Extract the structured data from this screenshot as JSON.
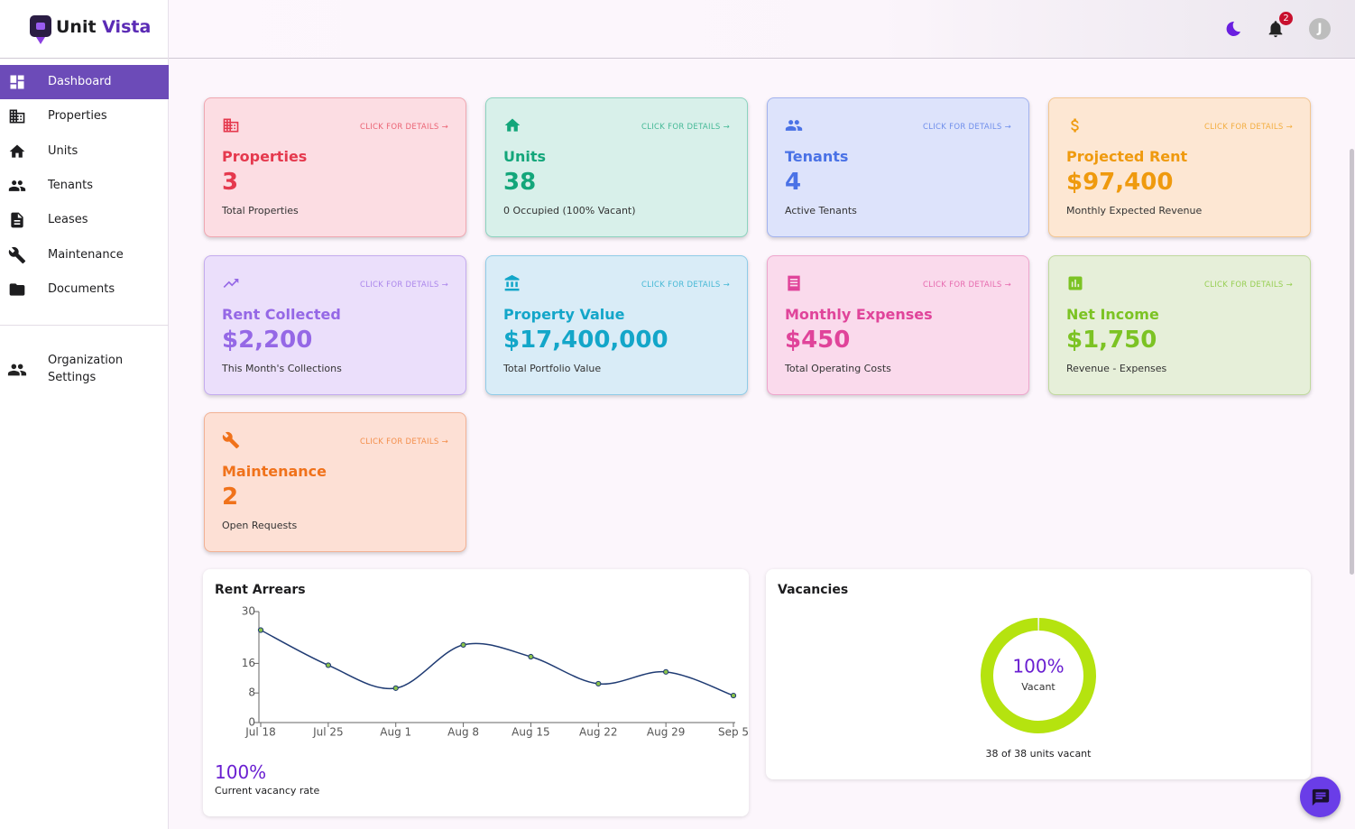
{
  "brand": {
    "first": "Unit",
    "second": "Vista"
  },
  "header": {
    "notification_count": "2",
    "avatar_initial": "J"
  },
  "nav": {
    "items": [
      "Dashboard",
      "Properties",
      "Units",
      "Tenants",
      "Leases",
      "Maintenance",
      "Documents"
    ],
    "settings": "Organization Settings"
  },
  "cards": [
    {
      "title": "Properties",
      "value": "3",
      "subtitle": "Total Properties",
      "link": "CLICK FOR DETAILS →"
    },
    {
      "title": "Units",
      "value": "38",
      "subtitle": "0 Occupied (100% Vacant)",
      "link": "CLICK FOR DETAILS →"
    },
    {
      "title": "Tenants",
      "value": "4",
      "subtitle": "Active Tenants",
      "link": "CLICK FOR DETAILS →"
    },
    {
      "title": "Projected Rent",
      "value": "$97,400",
      "subtitle": "Monthly Expected Revenue",
      "link": "CLICK FOR DETAILS →"
    },
    {
      "title": "Rent Collected",
      "value": "$2,200",
      "subtitle": "This Month's Collections",
      "link": "CLICK FOR DETAILS →"
    },
    {
      "title": "Property Value",
      "value": "$17,400,000",
      "subtitle": "Total Portfolio Value",
      "link": "CLICK FOR DETAILS →"
    },
    {
      "title": "Monthly Expenses",
      "value": "$450",
      "subtitle": "Total Operating Costs",
      "link": "CLICK FOR DETAILS →"
    },
    {
      "title": "Net Income",
      "value": "$1,750",
      "subtitle": "Revenue - Expenses",
      "link": "CLICK FOR DETAILS →"
    },
    {
      "title": "Maintenance",
      "value": "2",
      "subtitle": "Open Requests",
      "link": "CLICK FOR DETAILS →"
    }
  ],
  "chart_data": [
    {
      "type": "line",
      "title": "Rent Arrears",
      "categories": [
        "Jul 18",
        "Jul 25",
        "Aug 1",
        "Aug 8",
        "Aug 15",
        "Aug 22",
        "Aug 29",
        "Sep 5"
      ],
      "values": [
        25,
        15.5,
        9.3,
        21,
        17.8,
        10.5,
        13.7,
        7.3
      ],
      "ylim": [
        0,
        30
      ],
      "yticks": [
        0,
        8,
        16,
        30
      ],
      "color": "#1f3b73",
      "summary_value": "100%",
      "summary_label": "Current vacancy rate"
    },
    {
      "type": "donut",
      "title": "Vacancies",
      "values": [
        100
      ],
      "value_labels": [
        "100%"
      ],
      "center_label": "Vacant",
      "footer": "38 of 38 units vacant",
      "color": "#b5e30f"
    }
  ]
}
